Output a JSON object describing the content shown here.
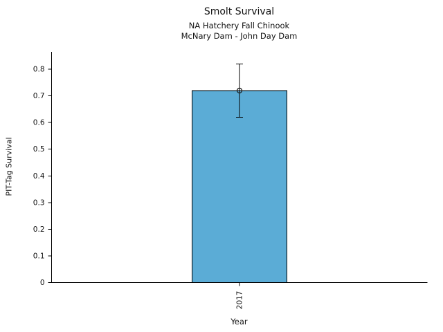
{
  "chart_data": {
    "type": "bar",
    "title": "Smolt Survival",
    "subtitle_lines": [
      "NA Hatchery Fall Chinook",
      "McNary Dam - John Day Dam"
    ],
    "xlabel": "Year",
    "ylabel": "PIT-Tag Survival",
    "categories": [
      "2017"
    ],
    "series": [
      {
        "name": "PIT-Tag Survival",
        "values": [
          0.72
        ],
        "error_low": [
          0.62
        ],
        "error_high": [
          0.82
        ]
      }
    ],
    "ylim": [
      0,
      0.865
    ],
    "yticks": [
      0,
      0.1,
      0.2,
      0.3,
      0.4,
      0.5,
      0.6,
      0.7,
      0.8
    ],
    "ytick_labels": [
      "0",
      "0.1",
      "0.2",
      "0.3",
      "0.4",
      "0.5",
      "0.6",
      "0.7",
      "0.8"
    ],
    "x_tick_rotation": 90,
    "grid": false,
    "legend_position": "none",
    "marker": "open-circle",
    "bar_color": "#5BACD6",
    "bar_edge_color": "#000000",
    "error_color": "#000000",
    "axis_color": "#000000"
  }
}
